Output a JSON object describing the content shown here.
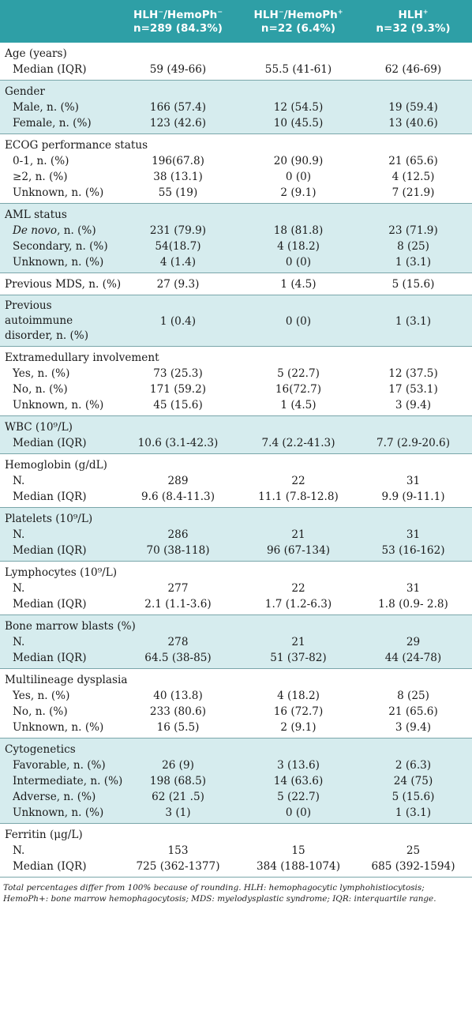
{
  "header": {
    "col1": "",
    "col2": {
      "group": "HLH−/HemoPh−",
      "n": "n=289 (84.3%)"
    },
    "col3": {
      "group": "HLH−/HemoPh+",
      "n": "n=22 (6.4%)"
    },
    "col4": {
      "group": "HLH+",
      "n": "n=32 (9.3%)"
    }
  },
  "sections": [
    {
      "title": "Age (years)",
      "shade": false,
      "rows": [
        {
          "label": "Median (IQR)",
          "v": [
            "59 (49-66)",
            "55.5 (41-61)",
            "62 (46-69)"
          ]
        }
      ]
    },
    {
      "title": "Gender",
      "shade": true,
      "rows": [
        {
          "label": "Male, n. (%)",
          "v": [
            "166 (57.4)",
            "12 (54.5)",
            "19 (59.4)"
          ]
        },
        {
          "label": "Female, n. (%)",
          "v": [
            "123 (42.6)",
            "10 (45.5)",
            "13 (40.6)"
          ]
        }
      ]
    },
    {
      "title": "ECOG performance status",
      "shade": false,
      "rows": [
        {
          "label": "0-1, n. (%)",
          "v": [
            "196(67.8)",
            "20 (90.9)",
            "21 (65.6)"
          ]
        },
        {
          "label": "≥2, n. (%)",
          "v": [
            "38 (13.1)",
            "0 (0)",
            "4 (12.5)"
          ]
        },
        {
          "label": "Unknown, n. (%)",
          "v": [
            "55 (19)",
            "2 (9.1)",
            "7 (21.9)"
          ]
        }
      ]
    },
    {
      "title": "AML status",
      "shade": true,
      "rows": [
        {
          "label": "De novo, n. (%)",
          "v": [
            "231 (79.9)",
            "18 (81.8)",
            "23 (71.9)"
          ]
        },
        {
          "label": "Secondary, n. (%)",
          "v": [
            "54(18.7)",
            "4 (18.2)",
            "8 (25)"
          ]
        },
        {
          "label": "Unknown, n. (%)",
          "v": [
            "4 (1.4)",
            "0 (0)",
            "1 (3.1)"
          ]
        }
      ]
    },
    {
      "title": "Previous MDS, n. (%)",
      "shade": false,
      "inline": [
        "27 (9.3)",
        "1 (4.5)",
        "5 (15.6)"
      ],
      "rows": []
    },
    {
      "title": "Previous autoimmune disorder, n. (%)",
      "shade": true,
      "inline": [
        "1 (0.4)",
        "0 (0)",
        "1 (3.1)"
      ],
      "wrap": true,
      "rows": []
    },
    {
      "title": "Extramedullary involvement",
      "shade": false,
      "rows": [
        {
          "label": "Yes, n. (%)",
          "v": [
            "73 (25.3)",
            "5 (22.7)",
            "12 (37.5)"
          ]
        },
        {
          "label": "No, n. (%)",
          "v": [
            "171 (59.2)",
            "16(72.7)",
            "17 (53.1)"
          ]
        },
        {
          "label": "Unknown, n. (%)",
          "v": [
            "45 (15.6)",
            "1 (4.5)",
            "3 (9.4)"
          ]
        }
      ]
    },
    {
      "title": "WBC (10⁹/L)",
      "shade": true,
      "rows": [
        {
          "label": "Median (IQR)",
          "v": [
            "10.6 (3.1-42.3)",
            "7.4 (2.2-41.3)",
            "7.7 (2.9-20.6)"
          ]
        }
      ]
    },
    {
      "title": "Hemoglobin (g/dL)",
      "shade": false,
      "rows": [
        {
          "label": "N.",
          "v": [
            "289",
            "22",
            "31"
          ]
        },
        {
          "label": "Median (IQR)",
          "v": [
            "9.6 (8.4-11.3)",
            "11.1 (7.8-12.8)",
            "9.9 (9-11.1)"
          ]
        }
      ]
    },
    {
      "title": "Platelets (10⁹/L)",
      "shade": true,
      "rows": [
        {
          "label": "N.",
          "v": [
            "286",
            "21",
            "31"
          ]
        },
        {
          "label": "Median (IQR)",
          "v": [
            "70 (38-118)",
            "96 (67-134)",
            "53 (16-162)"
          ]
        }
      ]
    },
    {
      "title": "Lymphocytes (10⁹/L)",
      "shade": false,
      "rows": [
        {
          "label": "N.",
          "v": [
            "277",
            "22",
            "31"
          ]
        },
        {
          "label": "Median (IQR)",
          "v": [
            "2.1 (1.1-3.6)",
            "1.7 (1.2-6.3)",
            "1.8 (0.9- 2.8)"
          ]
        }
      ]
    },
    {
      "title": "Bone marrow blasts (%)",
      "shade": true,
      "rows": [
        {
          "label": "N.",
          "v": [
            "278",
            "21",
            "29"
          ]
        },
        {
          "label": "Median (IQR)",
          "v": [
            "64.5 (38-85)",
            "51 (37-82)",
            "44 (24-78)"
          ]
        }
      ]
    },
    {
      "title": "Multilineage dysplasia",
      "shade": false,
      "rows": [
        {
          "label": "Yes, n. (%)",
          "v": [
            "40 (13.8)",
            "4 (18.2)",
            "8 (25)"
          ]
        },
        {
          "label": "No, n. (%)",
          "v": [
            "233 (80.6)",
            "16 (72.7)",
            "21 (65.6)"
          ]
        },
        {
          "label": "Unknown, n. (%)",
          "v": [
            "16 (5.5)",
            "2 (9.1)",
            "3 (9.4)"
          ]
        }
      ]
    },
    {
      "title": "Cytogenetics",
      "shade": true,
      "rows": [
        {
          "label": "Favorable, n. (%)",
          "v": [
            "26 (9)",
            "3 (13.6)",
            "2 (6.3)"
          ]
        },
        {
          "label": "Intermediate, n. (%)",
          "v": [
            "198 (68.5)",
            "14 (63.6)",
            "24 (75)"
          ]
        },
        {
          "label": "Adverse, n. (%)",
          "v": [
            "62 (21 .5)",
            "5 (22.7)",
            "5 (15.6)"
          ]
        },
        {
          "label": "Unknown, n. (%)",
          "v": [
            "3 (1)",
            "0 (0)",
            "1 (3.1)"
          ]
        }
      ]
    },
    {
      "title": "Ferritin (μg/L)",
      "shade": false,
      "rows": [
        {
          "label": "N.",
          "v": [
            "153",
            "15",
            "25"
          ]
        },
        {
          "label": "Median (IQR)",
          "v": [
            "725 (362-1377)",
            "384 (188-1074)",
            "685 (392-1594)"
          ]
        }
      ]
    }
  ],
  "footnote": "Total percentages differ from 100% because of rounding. HLH: hemophagocytic lymphohistiocytosis; HemoPh+: bone marrow hemophagocytosis; MDS: myelodysplastic syndrome; IQR: interquartile range."
}
